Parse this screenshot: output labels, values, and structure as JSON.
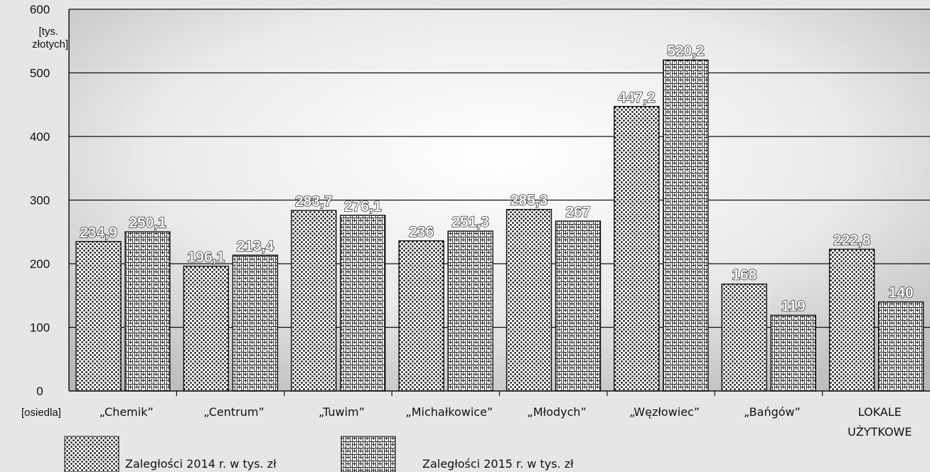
{
  "chart_data": {
    "type": "bar",
    "categories": [
      "„Chemik”",
      "„Centrum”",
      "„Tuwim”",
      "„Michałkowice”",
      "„Młodych”",
      "„Węzłowiec”",
      "„Bańgów”",
      "LOKALE UŻYTKOWE"
    ],
    "series": [
      {
        "name": "Zaległości 2014 r. w tys. zł",
        "values": [
          234.9,
          196.1,
          283.7,
          236,
          285.3,
          447.2,
          168,
          222.8
        ],
        "labels": [
          "234,9",
          "196,1",
          "283,7",
          "236",
          "285,3",
          "447,2",
          "168",
          "222,8"
        ]
      },
      {
        "name": "Zaległości 2015 r. w tys. zł",
        "values": [
          250.1,
          213.4,
          276.1,
          251.3,
          267,
          520.2,
          119,
          140
        ],
        "labels": [
          "250,1",
          "213,4",
          "276,1",
          "251,3",
          "267",
          "520,2",
          "119",
          "140"
        ]
      }
    ],
    "ylim": [
      0,
      600
    ],
    "yticks": [
      "0",
      "100",
      "200",
      "300",
      "400",
      "500",
      "600"
    ],
    "ylabel": "[tys. złotych]",
    "xlabel": "[osiedla]",
    "grid": true,
    "legend_position": "bottom"
  }
}
